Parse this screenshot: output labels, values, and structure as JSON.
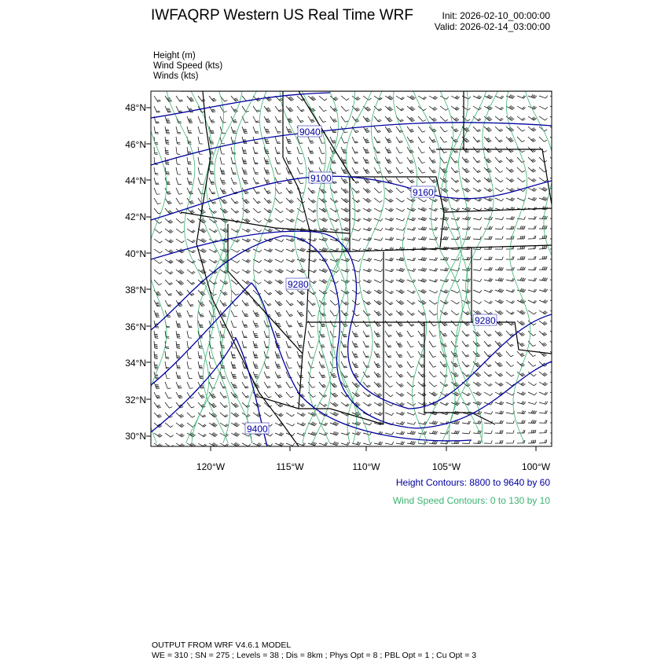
{
  "header": {
    "title": "IWFAQRP Western US Real Time WRF",
    "init": "Init: 2026-02-10_00:00:00",
    "valid": "Valid: 2026-02-14_03:00:00"
  },
  "legend": [
    "Height   (m)",
    "Wind Speed   (kts)",
    "Winds   (kts)"
  ],
  "map": {
    "lat_ticks": [
      "48°N",
      "46°N",
      "44°N",
      "42°N",
      "40°N",
      "38°N",
      "36°N",
      "34°N",
      "32°N",
      "30°N"
    ],
    "lon_ticks": [
      "120°W",
      "115°W",
      "110°W",
      "105°W",
      "100°W"
    ],
    "height_contour_labels": [
      "9040",
      "9100",
      "9160",
      "9280",
      "9280",
      "9400"
    ],
    "colors": {
      "height": "#0000a0",
      "wind_speed": "#3cb371",
      "barbs": "#000000",
      "boundaries": "#000000"
    }
  },
  "footer": {
    "height_contours": "Height Contours: 8800 to 9640 by 60",
    "wind_contours": "Wind Speed Contours: 0 to 130 by 10",
    "line1": "OUTPUT FROM WRF V4.6.1 MODEL",
    "line2": "WE = 310 ; SN = 275 ; Levels = 38 ; Dis = 8km ; Phys Opt = 8 ; PBL Opt = 1 ; Cu Opt = 3"
  }
}
